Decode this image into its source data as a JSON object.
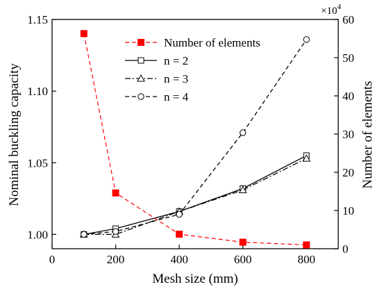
{
  "chart_data": {
    "type": "line",
    "xlabel": "Mesh size (mm)",
    "ylabel_left": "Nominal buckling capacity",
    "ylabel_right": "Number of elements",
    "right_axis_multiplier": "×10",
    "right_axis_multiplier_exp": "4",
    "x_ticks": [
      0,
      200,
      400,
      600,
      800
    ],
    "x_tick_labels": [
      "0",
      "200",
      "400",
      "600",
      "800"
    ],
    "xlim": [
      0,
      900
    ],
    "y_left_ticks": [
      1.0,
      1.05,
      1.1,
      1.15
    ],
    "y_left_tick_labels": [
      "1.00",
      "1.05",
      "1.10",
      "1.15"
    ],
    "ylim_left": [
      0.99,
      1.15
    ],
    "y_right_ticks": [
      0,
      10,
      20,
      30,
      40,
      50,
      60
    ],
    "y_right_tick_labels": [
      "0",
      "10",
      "20",
      "30",
      "40",
      "50",
      "60"
    ],
    "ylim_right": [
      0,
      60
    ],
    "legend_position": "top-center",
    "series": [
      {
        "name": "Number of elements",
        "axis": "right",
        "color": "#ff0000",
        "line_style": "dashed",
        "marker": "filled-square",
        "x": [
          100,
          200,
          400,
          600,
          800
        ],
        "y": [
          56.3,
          14.6,
          3.8,
          1.7,
          1.0
        ]
      },
      {
        "name": "n = 2",
        "axis": "left",
        "color": "#000000",
        "line_style": "solid",
        "marker": "open-square",
        "x": [
          100,
          200,
          400,
          600,
          800
        ],
        "y": [
          1.0,
          1.004,
          1.016,
          1.032,
          1.055
        ]
      },
      {
        "name": "n = 3",
        "axis": "left",
        "color": "#000000",
        "line_style": "dash-dot",
        "marker": "open-triangle",
        "x": [
          100,
          200,
          400,
          600,
          800
        ],
        "y": [
          1.0,
          1.0,
          1.016,
          1.031,
          1.053
        ]
      },
      {
        "name": "n = 4",
        "axis": "left",
        "color": "#000000",
        "line_style": "dashed",
        "marker": "open-circle",
        "x": [
          100,
          200,
          400,
          600,
          800
        ],
        "y": [
          1.0,
          1.002,
          1.014,
          1.071,
          1.136
        ]
      }
    ]
  }
}
